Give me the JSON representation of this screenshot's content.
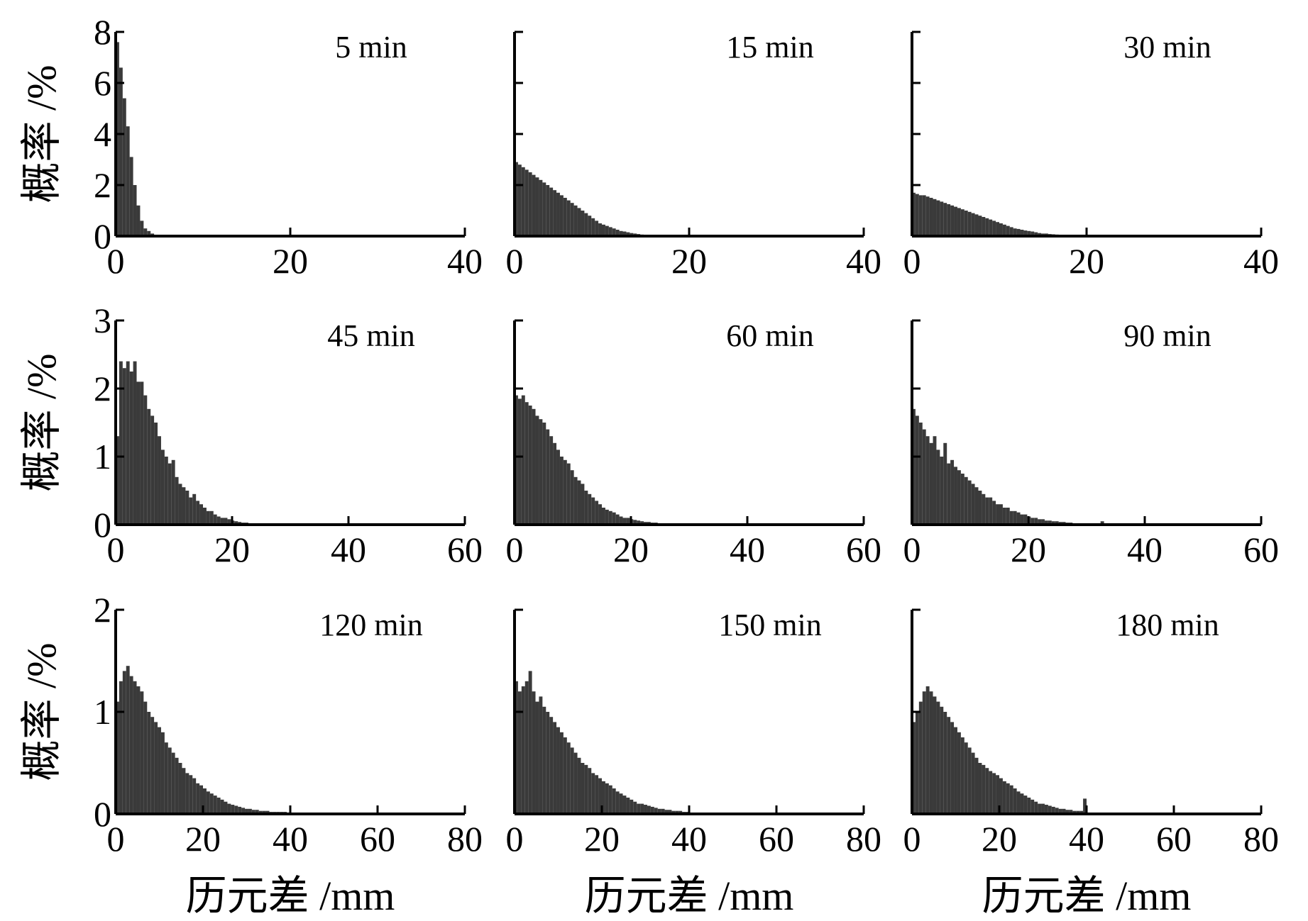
{
  "chart_data": [
    {
      "type": "bar",
      "annotation": "5 min",
      "xlabel": "",
      "ylabel": "概率 /%",
      "xlim": [
        0,
        40
      ],
      "ylim": [
        0,
        8
      ],
      "xticks": [
        "0",
        "20",
        "40"
      ],
      "yticks": [
        "0",
        "2",
        "4",
        "6",
        "8"
      ],
      "bin_width": 0.4,
      "values": [
        7.6,
        6.6,
        5.4,
        4.3,
        3.1,
        2.0,
        1.2,
        0.6,
        0.3,
        0.2,
        0.1
      ]
    },
    {
      "type": "bar",
      "annotation": "15 min",
      "xlabel": "",
      "ylabel": "",
      "xlim": [
        0,
        40
      ],
      "ylim": [
        0,
        8
      ],
      "xticks": [
        "0",
        "20",
        "40"
      ],
      "yticks": [
        "",
        "",
        "",
        "",
        ""
      ],
      "bin_width": 0.4,
      "values": [
        2.9,
        2.8,
        2.7,
        2.6,
        2.5,
        2.4,
        2.3,
        2.2,
        2.1,
        2.0,
        1.9,
        1.8,
        1.7,
        1.6,
        1.5,
        1.4,
        1.3,
        1.2,
        1.1,
        1.0,
        0.9,
        0.8,
        0.7,
        0.6,
        0.5,
        0.45,
        0.4,
        0.35,
        0.3,
        0.25,
        0.2,
        0.18,
        0.15,
        0.12,
        0.1,
        0.08,
        0.06,
        0.05,
        0.04,
        0.03,
        0.02,
        0.02
      ]
    },
    {
      "type": "bar",
      "annotation": "30 min",
      "xlabel": "",
      "ylabel": "",
      "xlim": [
        0,
        40
      ],
      "ylim": [
        0,
        8
      ],
      "xticks": [
        "0",
        "20",
        "40"
      ],
      "yticks": [
        "",
        "",
        "",
        "",
        ""
      ],
      "bin_width": 0.4,
      "values": [
        1.7,
        1.65,
        1.6,
        1.6,
        1.55,
        1.5,
        1.45,
        1.4,
        1.35,
        1.3,
        1.25,
        1.2,
        1.15,
        1.1,
        1.05,
        1.0,
        0.95,
        0.9,
        0.85,
        0.8,
        0.75,
        0.7,
        0.65,
        0.6,
        0.55,
        0.5,
        0.45,
        0.4,
        0.35,
        0.3,
        0.28,
        0.25,
        0.22,
        0.2,
        0.18,
        0.15,
        0.12,
        0.1,
        0.1,
        0.08,
        0.07,
        0.06,
        0.05,
        0.04,
        0.04,
        0.03,
        0.03,
        0.02,
        0.02,
        0.02
      ]
    },
    {
      "type": "bar",
      "annotation": "45 min",
      "xlabel": "",
      "ylabel": "概率 /%",
      "xlim": [
        0,
        60
      ],
      "ylim": [
        0,
        3
      ],
      "xticks": [
        "0",
        "20",
        "40",
        "60"
      ],
      "yticks": [
        "0",
        "1",
        "2",
        "3"
      ],
      "bin_width": 0.6,
      "values": [
        1.3,
        2.4,
        2.3,
        2.4,
        2.25,
        2.4,
        2.1,
        2.1,
        1.9,
        1.7,
        1.6,
        1.5,
        1.3,
        1.1,
        1.0,
        0.9,
        0.95,
        0.7,
        0.6,
        0.55,
        0.5,
        0.4,
        0.45,
        0.35,
        0.3,
        0.25,
        0.2,
        0.2,
        0.15,
        0.12,
        0.1,
        0.1,
        0.08,
        0.06,
        0.05,
        0.04,
        0.03,
        0.03,
        0.02,
        0.02
      ]
    },
    {
      "type": "bar",
      "annotation": "60 min",
      "xlabel": "",
      "ylabel": "",
      "xlim": [
        0,
        60
      ],
      "ylim": [
        0,
        3
      ],
      "xticks": [
        "0",
        "20",
        "40",
        "60"
      ],
      "yticks": [
        "",
        "",
        "",
        ""
      ],
      "bin_width": 0.6,
      "values": [
        1.9,
        1.85,
        1.9,
        1.8,
        1.75,
        1.7,
        1.6,
        1.55,
        1.5,
        1.4,
        1.3,
        1.2,
        1.1,
        1.0,
        0.95,
        0.9,
        0.8,
        0.7,
        0.65,
        0.6,
        0.5,
        0.45,
        0.4,
        0.35,
        0.3,
        0.25,
        0.22,
        0.2,
        0.18,
        0.15,
        0.12,
        0.1,
        0.1,
        0.08,
        0.07,
        0.06,
        0.05,
        0.04,
        0.04,
        0.03,
        0.03,
        0.02,
        0.02,
        0.02,
        0.02
      ]
    },
    {
      "type": "bar",
      "annotation": "90 min",
      "xlabel": "",
      "ylabel": "",
      "xlim": [
        0,
        60
      ],
      "ylim": [
        0,
        3
      ],
      "xticks": [
        "0",
        "20",
        "40",
        "60"
      ],
      "yticks": [
        "",
        "",
        "",
        ""
      ],
      "bin_width": 0.6,
      "values": [
        1.7,
        1.6,
        1.5,
        1.4,
        1.3,
        1.2,
        1.3,
        1.1,
        1.0,
        1.2,
        0.9,
        0.95,
        0.85,
        0.8,
        0.75,
        0.7,
        0.65,
        0.6,
        0.55,
        0.5,
        0.45,
        0.4,
        0.4,
        0.35,
        0.3,
        0.3,
        0.25,
        0.25,
        0.2,
        0.2,
        0.18,
        0.15,
        0.15,
        0.12,
        0.1,
        0.1,
        0.08,
        0.08,
        0.06,
        0.06,
        0.05,
        0.05,
        0.04,
        0.04,
        0.03,
        0.03,
        0.02,
        0.02,
        0.02,
        0.02,
        0.01,
        0.01,
        0.01,
        0.01,
        0.05
      ]
    },
    {
      "type": "bar",
      "annotation": "120 min",
      "xlabel": "历元差 /mm",
      "ylabel": "概率 /%",
      "xlim": [
        0,
        80
      ],
      "ylim": [
        0,
        2
      ],
      "xticks": [
        "0",
        "20",
        "40",
        "60",
        "80"
      ],
      "yticks": [
        "0",
        "1",
        "2"
      ],
      "bin_width": 0.8,
      "values": [
        1.1,
        1.3,
        1.4,
        1.45,
        1.35,
        1.3,
        1.25,
        1.2,
        1.1,
        1.0,
        0.95,
        0.9,
        0.85,
        0.8,
        0.7,
        0.65,
        0.6,
        0.55,
        0.5,
        0.45,
        0.4,
        0.38,
        0.35,
        0.3,
        0.28,
        0.25,
        0.22,
        0.2,
        0.18,
        0.16,
        0.14,
        0.12,
        0.1,
        0.09,
        0.08,
        0.07,
        0.06,
        0.05,
        0.05,
        0.04,
        0.04,
        0.03,
        0.03,
        0.03,
        0.02,
        0.02,
        0.02,
        0.02,
        0.02,
        0.01
      ]
    },
    {
      "type": "bar",
      "annotation": "150 min",
      "xlabel": "历元差 /mm",
      "ylabel": "",
      "xlim": [
        0,
        80
      ],
      "ylim": [
        0,
        2
      ],
      "xticks": [
        "0",
        "20",
        "40",
        "60",
        "80"
      ],
      "yticks": [
        "",
        "",
        ""
      ],
      "bin_width": 0.8,
      "values": [
        1.3,
        1.2,
        1.25,
        1.3,
        1.4,
        1.2,
        1.1,
        1.15,
        1.05,
        1.0,
        0.95,
        0.9,
        0.85,
        0.8,
        0.75,
        0.7,
        0.65,
        0.6,
        0.55,
        0.5,
        0.48,
        0.45,
        0.4,
        0.38,
        0.35,
        0.32,
        0.3,
        0.28,
        0.25,
        0.22,
        0.2,
        0.18,
        0.16,
        0.14,
        0.12,
        0.1,
        0.1,
        0.09,
        0.08,
        0.07,
        0.06,
        0.05,
        0.05,
        0.04,
        0.04,
        0.03,
        0.03,
        0.03,
        0.02,
        0.02
      ]
    },
    {
      "type": "bar",
      "annotation": "180 min",
      "xlabel": "历元差 /mm",
      "ylabel": "",
      "xlim": [
        0,
        80
      ],
      "ylim": [
        0,
        2
      ],
      "xticks": [
        "0",
        "20",
        "40",
        "60",
        "80"
      ],
      "yticks": [
        "",
        "",
        ""
      ],
      "bin_width": 0.8,
      "values": [
        0.9,
        1.0,
        1.1,
        1.2,
        1.25,
        1.2,
        1.15,
        1.1,
        1.05,
        1.0,
        0.95,
        0.9,
        0.85,
        0.8,
        0.75,
        0.7,
        0.65,
        0.6,
        0.55,
        0.5,
        0.48,
        0.45,
        0.42,
        0.4,
        0.38,
        0.35,
        0.32,
        0.3,
        0.28,
        0.25,
        0.22,
        0.2,
        0.18,
        0.16,
        0.14,
        0.12,
        0.1,
        0.1,
        0.09,
        0.08,
        0.07,
        0.06,
        0.05,
        0.05,
        0.04,
        0.04,
        0.03,
        0.03,
        0.03,
        0.15
      ]
    }
  ],
  "colors": {
    "bar_fill": "#3a3a3a",
    "axis": "#000000"
  }
}
